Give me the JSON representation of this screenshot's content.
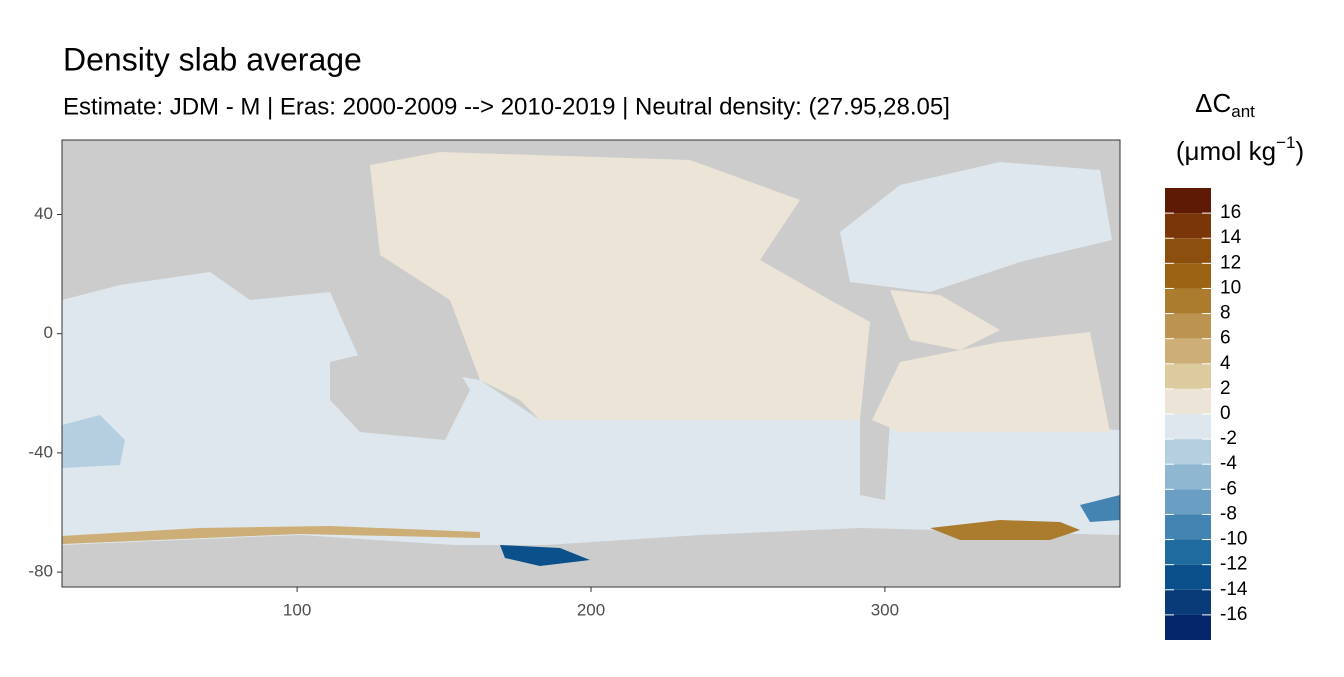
{
  "chart_data": {
    "type": "raster-map",
    "title": "Density slab average",
    "subtitle": "Estimate: JDM - M | Eras: 2000-2009 --> 2010-2019 | Neutral density: (27.95,28.05]",
    "xlim": [
      20,
      380
    ],
    "ylim": [
      -85,
      65
    ],
    "xticks": [
      100,
      200,
      300
    ],
    "yticks": [
      40,
      0,
      -40,
      -80
    ],
    "legend": {
      "title_parts": [
        "ΔC",
        "ant"
      ],
      "units_parts": [
        "(μmol kg",
        "−1",
        ")"
      ],
      "breaks": [
        18,
        16,
        14,
        12,
        10,
        8,
        6,
        4,
        2,
        0,
        -2,
        -4,
        -6,
        -8,
        -10,
        -12,
        -14,
        -16,
        -18
      ],
      "ticks": [
        16,
        14,
        12,
        10,
        8,
        6,
        4,
        2,
        0,
        -2,
        -4,
        -6,
        -8,
        -10,
        -12,
        -14,
        -16
      ],
      "colors": [
        "#5e1a04",
        "#7a3508",
        "#8c4f0d",
        "#9c6315",
        "#ab7b2e",
        "#bc9350",
        "#ccae76",
        "#dccb9f",
        "#ece5d7",
        "#dde7ed",
        "#b5cfe0",
        "#8fb7d2",
        "#6a9ec3",
        "#4384b2",
        "#1f6a9e",
        "#0b508a",
        "#093b78",
        "#05256a"
      ]
    }
  }
}
